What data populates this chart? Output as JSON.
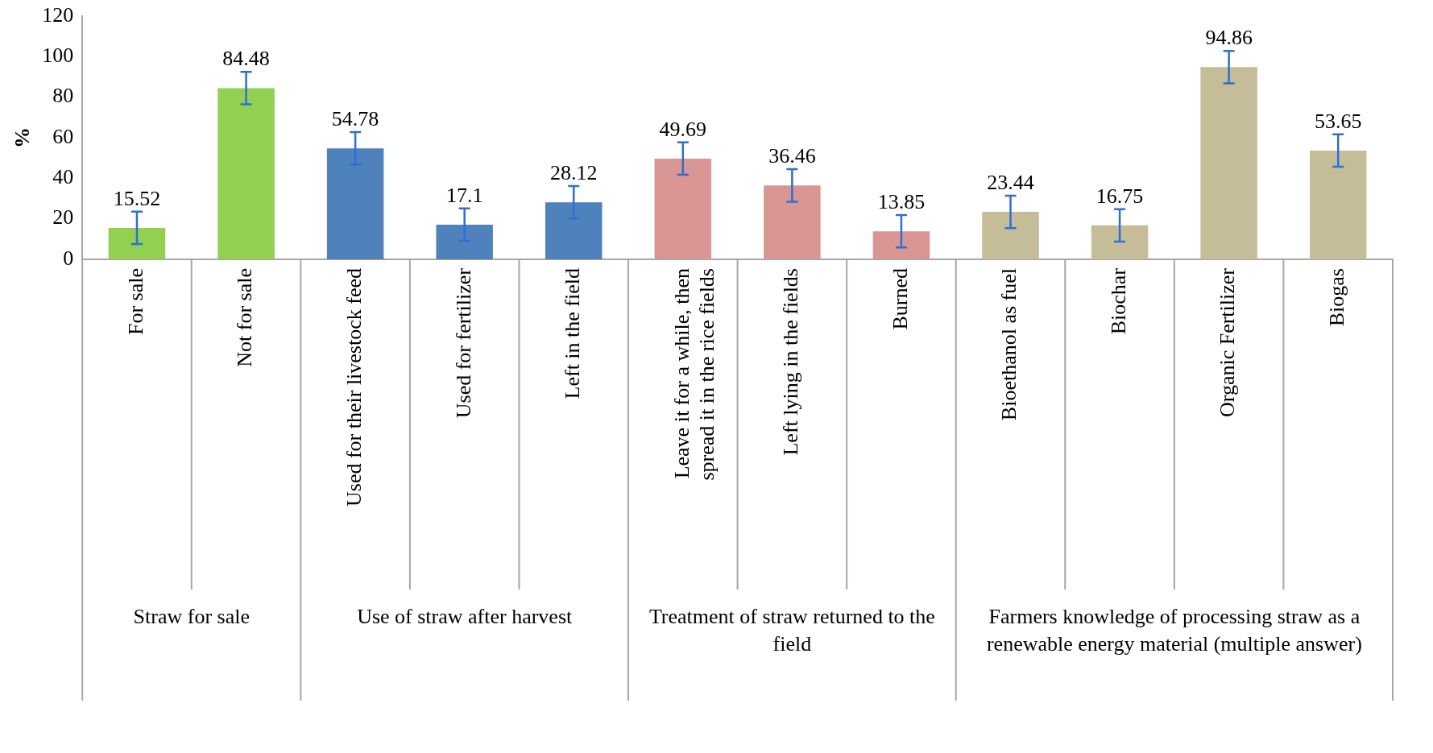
{
  "chart_data": {
    "type": "bar",
    "ylabel": "%",
    "categories": [
      "For sale",
      "Not for sale",
      "Used for their livestock feed",
      "Used for fertilizer",
      "Left in the field",
      "Leave it for a while, then spread it in the rice fields",
      "Left lying in the fields",
      "Burned",
      "Bioethanol as fuel",
      "Biochar",
      "Organic Fertilizer",
      "Biogas"
    ],
    "values": [
      15.52,
      84.48,
      54.78,
      17.1,
      28.12,
      49.69,
      36.46,
      13.85,
      23.44,
      16.75,
      94.86,
      53.65
    ],
    "colors": [
      "#92d050",
      "#92d050",
      "#4f81bd",
      "#4f81bd",
      "#4f81bd",
      "#da9694",
      "#da9694",
      "#da9694",
      "#c4bd97",
      "#c4bd97",
      "#c4bd97",
      "#c4bd97"
    ],
    "errors": [
      8,
      8,
      8,
      8,
      8,
      8,
      8,
      8,
      8,
      8,
      8,
      8
    ],
    "ylim": [
      0,
      120
    ],
    "yticks": [
      0,
      20,
      40,
      60,
      80,
      100,
      120
    ],
    "grid": false,
    "legend": false,
    "data_labels": true,
    "annotations": [
      "Straw for sale",
      "Use of straw after harvest",
      "Treatment of straw returned to the field",
      "Farmers knowledge of processing straw as a renewable energy material (multiple answer)"
    ]
  }
}
